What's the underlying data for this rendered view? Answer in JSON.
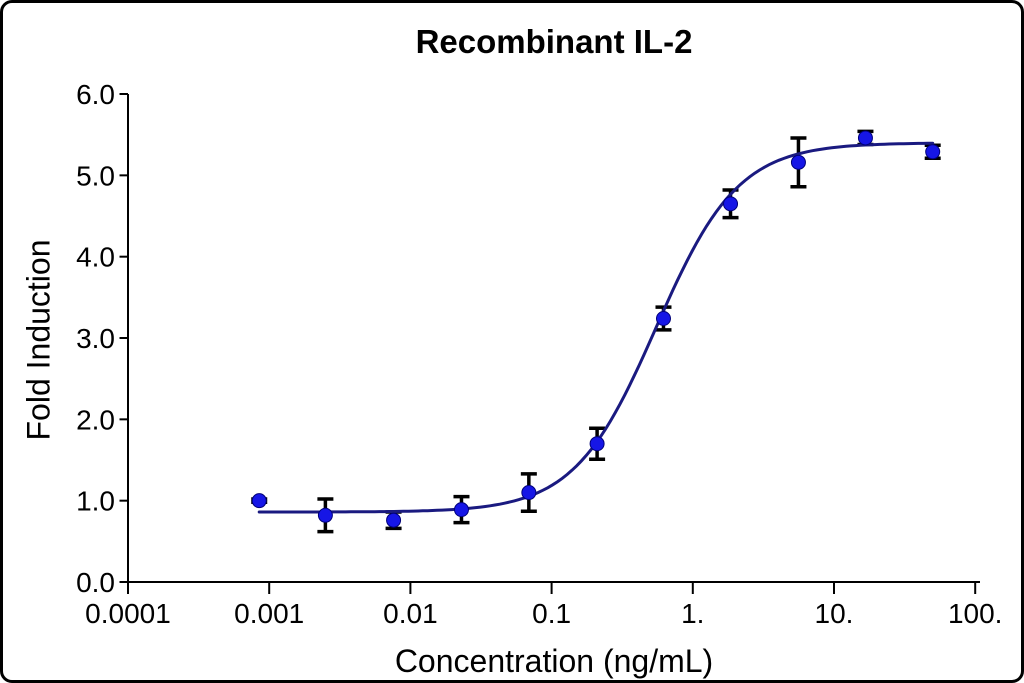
{
  "chart_data": {
    "type": "scatter",
    "title": "Recombinant IL-2",
    "xlabel": "Concentration (ng/mL)",
    "ylabel": "Fold Induction",
    "x_scale": "log",
    "xlim": [
      0.0001,
      100
    ],
    "ylim": [
      0.0,
      6.0
    ],
    "grid": false,
    "legend": "none",
    "x_ticks": [
      0.0001,
      0.001,
      0.01,
      0.1,
      1,
      10,
      100
    ],
    "x_tick_labels": [
      "0.0001",
      "0.001",
      "0.01",
      "0.1",
      "1.",
      "10.",
      "100."
    ],
    "y_ticks": [
      0,
      1,
      2,
      3,
      4,
      5,
      6
    ],
    "y_tick_labels": [
      "0.0",
      "1.0",
      "2.0",
      "3.0",
      "4.0",
      "5.0",
      "6.0"
    ],
    "series": [
      {
        "name": "Recombinant IL-2",
        "marker": "circle",
        "points": [
          {
            "x": 0.00085,
            "y": 1.0,
            "err": 0.02
          },
          {
            "x": 0.0025,
            "y": 0.82,
            "err": 0.2
          },
          {
            "x": 0.0076,
            "y": 0.76,
            "err": 0.1
          },
          {
            "x": 0.023,
            "y": 0.89,
            "err": 0.16
          },
          {
            "x": 0.069,
            "y": 1.1,
            "err": 0.23
          },
          {
            "x": 0.21,
            "y": 1.7,
            "err": 0.19
          },
          {
            "x": 0.62,
            "y": 3.24,
            "err": 0.14
          },
          {
            "x": 1.85,
            "y": 4.65,
            "err": 0.17
          },
          {
            "x": 5.6,
            "y": 5.16,
            "err": 0.3
          },
          {
            "x": 16.7,
            "y": 5.46,
            "err": 0.08
          },
          {
            "x": 50,
            "y": 5.29,
            "err": 0.08
          }
        ]
      }
    ],
    "curve_fit": {
      "model": "4PL",
      "bottom": 0.86,
      "top": 5.4,
      "ec50": 0.55,
      "hill": 1.5,
      "x_start": 0.00085,
      "x_end": 50
    },
    "colors": {
      "marker": "#1616e6",
      "marker_outline": "#00007a",
      "curve": "#1a1a80",
      "error_bar": "#000000",
      "axis": "#000000",
      "text": "#000000",
      "background": "#ffffff",
      "border": "#000000"
    }
  }
}
